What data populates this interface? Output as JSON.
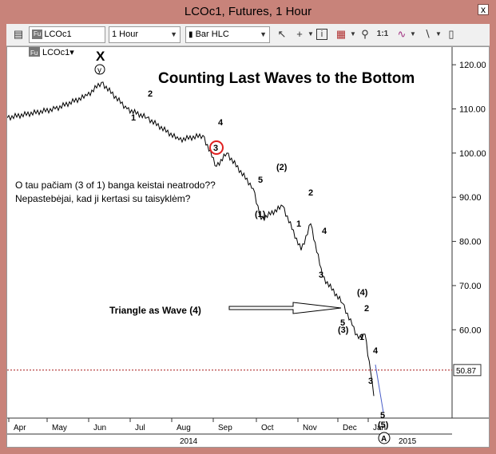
{
  "window": {
    "title": "LCOc1, Futures, 1 Hour",
    "close_glyph": "x"
  },
  "toolbar": {
    "symbol_badge": "Fu",
    "symbol": "LCOc1",
    "interval": "1 Hour",
    "chart_type": "Bar HLC",
    "ratio_label": "1:1"
  },
  "legend": {
    "badge": "Fu",
    "symbol": "LCOc1▾"
  },
  "chart": {
    "title": "Counting Last Waves to the Bottom",
    "annotation_lt_line1": "O tau pačiam (3 of 1) banga keistai neatrodo??",
    "annotation_lt_line2": "Nepastebėjai, kad ji kertasi su taisyklėm?",
    "triangle_note": "Triangle as Wave (4)",
    "last_price": "50.87",
    "wave_labels": [
      "X",
      "y",
      "2",
      "1",
      "4",
      "3",
      "5",
      "(1)",
      "(2)",
      "1",
      "2",
      "4",
      "3",
      "5",
      "(3)",
      "(4)",
      "1",
      "2",
      "4",
      "3",
      "5",
      "(5)",
      "A"
    ],
    "colors": {
      "price": "#000000",
      "circle_red": "#e02020",
      "dotted_line": "#b03030",
      "blue_line": "#4a5fc8"
    }
  },
  "chart_data": {
    "type": "line",
    "series": [
      {
        "x": [
          "Apr",
          "May",
          "Jun",
          "Jun",
          "Jul",
          "Jul",
          "Aug",
          "Aug",
          "Sep",
          "Sep",
          "Oct",
          "Oct",
          "Oct",
          "Nov",
          "Nov",
          "Nov",
          "Dec",
          "Dec",
          "Dec",
          "Dec",
          "Jan",
          "Jan"
        ],
        "values": [
          108,
          110,
          113,
          116,
          110,
          108,
          103,
          104,
          97,
          100,
          92,
          85,
          88,
          78,
          84,
          72,
          66,
          61,
          58,
          59,
          50.5,
          45
        ]
      }
    ],
    "yticks": [
      60,
      70,
      80,
      90,
      100,
      110,
      120
    ],
    "ylim": [
      40,
      124
    ],
    "xticks": [
      "Apr",
      "May",
      "Jun",
      "Jul",
      "Aug",
      "Sep",
      "Oct",
      "Nov",
      "Dec",
      "Jan"
    ],
    "year_labels": [
      "2014",
      "2015"
    ],
    "grid": false
  }
}
